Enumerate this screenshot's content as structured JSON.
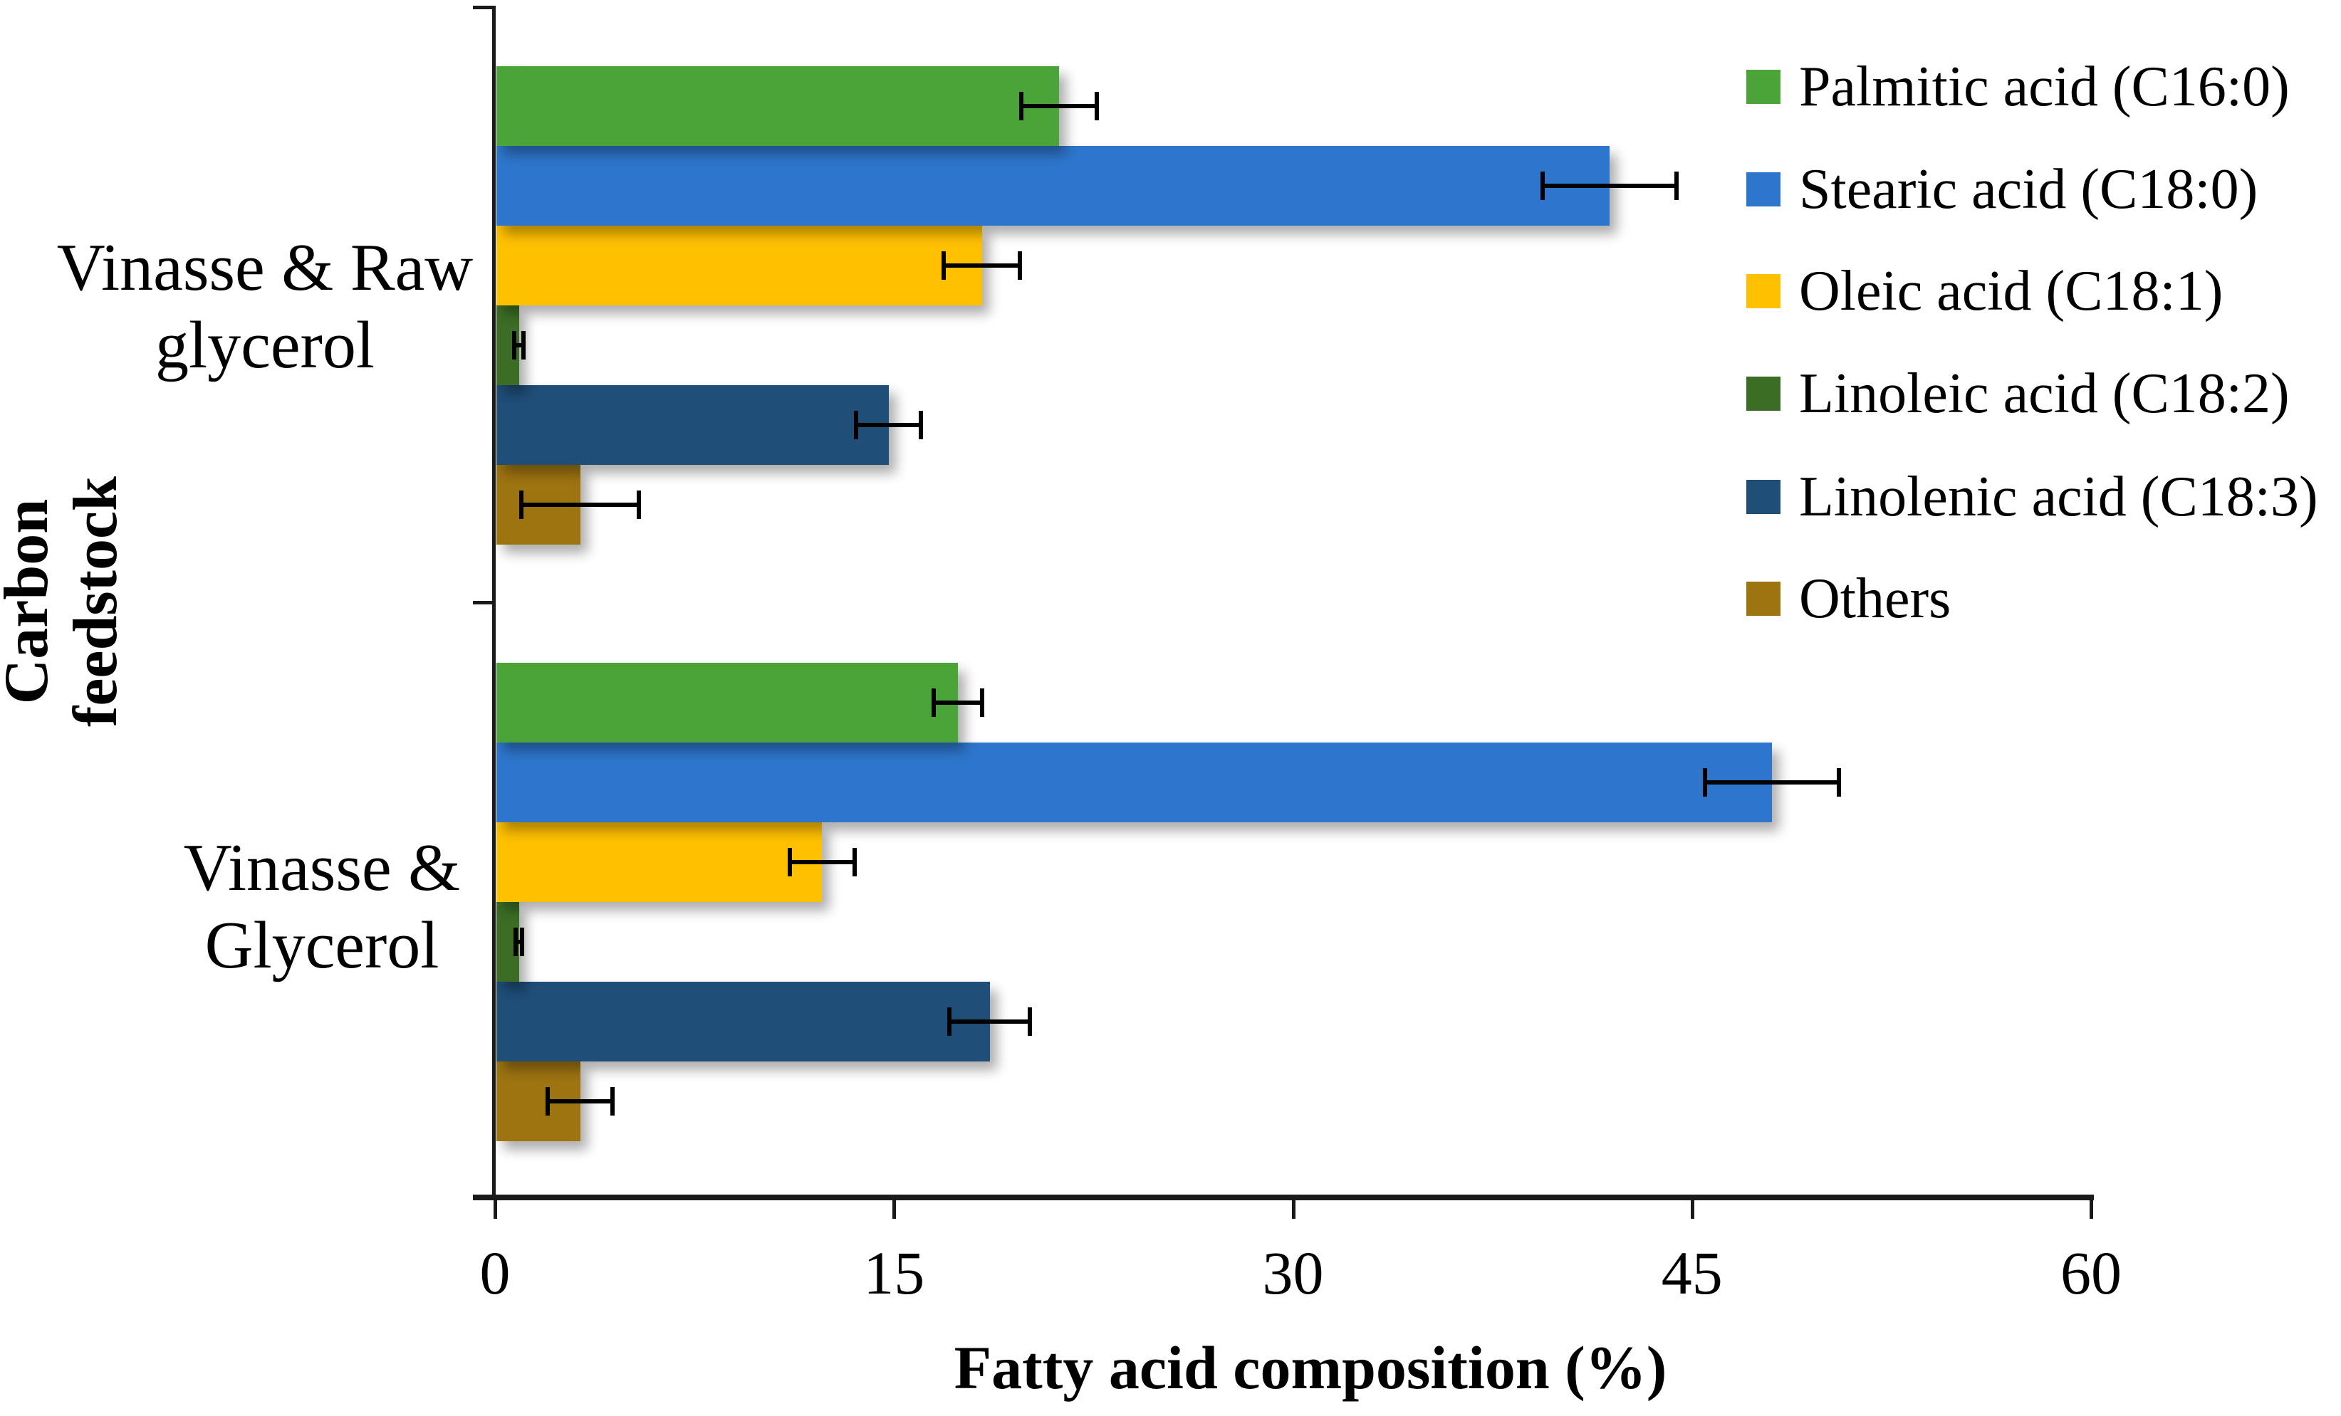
{
  "chart_data": {
    "type": "bar",
    "orientation": "horizontal",
    "title": "",
    "xlabel": "Fatty acid composition (%)",
    "ylabel": "Carbon feedstock",
    "ylabel_display": "Carbon\nfeedstock",
    "xlim": [
      0,
      60
    ],
    "x_ticks": [
      0,
      15,
      30,
      45,
      60
    ],
    "grid": "off",
    "legend_position": "upper right",
    "categories": [
      "Vinasse & Raw glycerol",
      "Vinasse & Glycerol"
    ],
    "category_labels_display": [
      "Vinasse & Raw\nglycerol",
      "Vinasse &\nGlycerol"
    ],
    "error_bars": "symmetric, values listed per series per category",
    "series": [
      {
        "name": "Palmitic acid (C16:0)",
        "color": "#4BA438",
        "values": [
          21.2,
          17.4
        ],
        "errors": [
          1.5,
          1.0
        ]
      },
      {
        "name": "Stearic acid (C18:0)",
        "color": "#2E76CD",
        "values": [
          41.9,
          48.0
        ],
        "errors": [
          2.6,
          2.6
        ]
      },
      {
        "name": "Oleic acid (C18:1)",
        "color": "#FFC000",
        "values": [
          18.3,
          12.3
        ],
        "errors": [
          1.5,
          1.3
        ]
      },
      {
        "name": "Linoleic acid (C18:2)",
        "color": "#3B6D24",
        "values": [
          0.9,
          0.9
        ],
        "errors": [
          0.25,
          0.2
        ]
      },
      {
        "name": "Linolenic acid (C18:3)",
        "color": "#1F4E79",
        "values": [
          14.8,
          18.6
        ],
        "errors": [
          1.3,
          1.6
        ]
      },
      {
        "name": "Others",
        "color": "#9E7411",
        "values": [
          3.2,
          3.2
        ],
        "errors": [
          2.3,
          1.3
        ]
      }
    ],
    "style": {
      "axis_color": "#1a1a1a",
      "error_bar_color": "#000000",
      "text_color": "#000000",
      "background": "#ffffff"
    }
  }
}
